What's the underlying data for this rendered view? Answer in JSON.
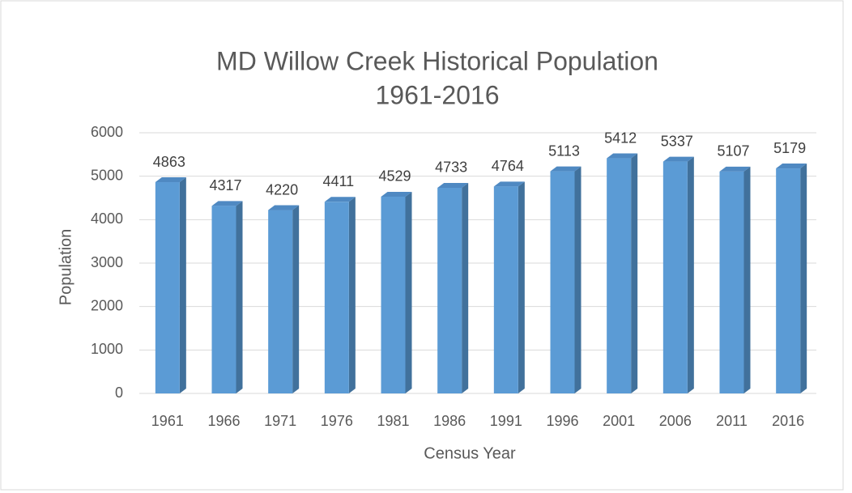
{
  "chart_data": {
    "type": "bar",
    "title": [
      "MD Willow Creek Historical Population",
      "1961-2016"
    ],
    "x_label": "Census Year",
    "y_label": "Population",
    "categories": [
      "1961",
      "1966",
      "1971",
      "1976",
      "1981",
      "1986",
      "1991",
      "1996",
      "2001",
      "2006",
      "2011",
      "2016"
    ],
    "values": [
      4863,
      4317,
      4220,
      4411,
      4529,
      4733,
      4764,
      5113,
      5412,
      5337,
      5107,
      5179
    ],
    "color": "#5b9bd5",
    "ylim": [
      0,
      6000
    ],
    "yticks": [
      0,
      1000,
      2000,
      3000,
      4000,
      5000,
      6000
    ],
    "grid": true
  }
}
